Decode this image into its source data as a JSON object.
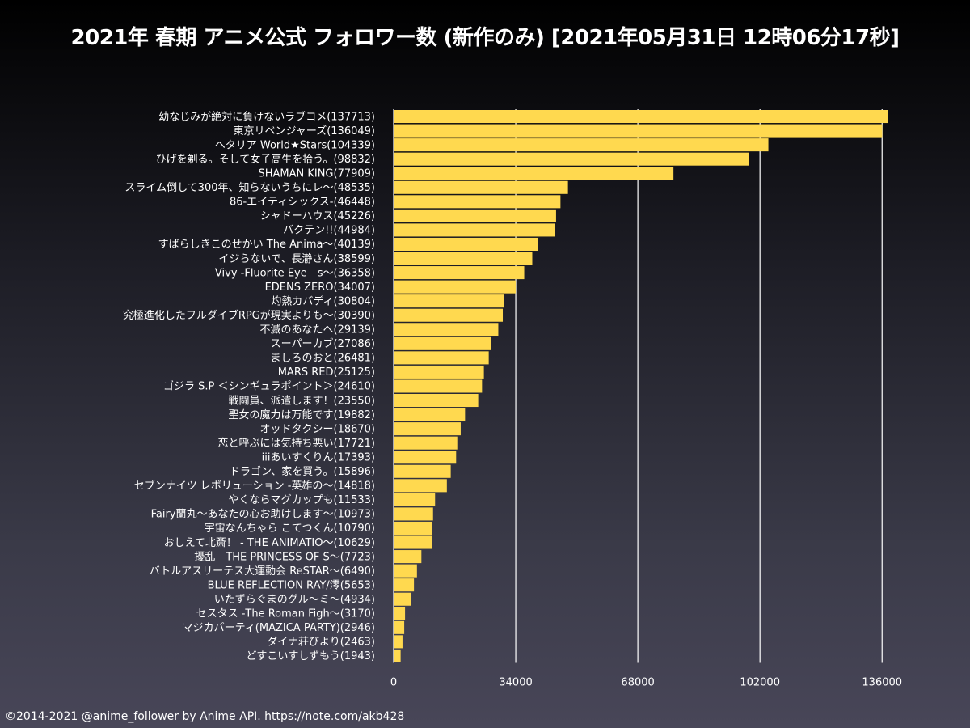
{
  "title": "2021年 春期 アニメ公式 フォロワー数 (新作のみ) [2021年05月31日 12時06分17秒]",
  "footer": "©2014-2021 @anime_follower by Anime API. https://note.com/akb428",
  "colors": {
    "bar": "#ffd94f",
    "grid": "#ffffff",
    "text": "#ffffff"
  },
  "chart_data": {
    "type": "bar",
    "orientation": "horizontal",
    "title": "2021年 春期 アニメ公式 フォロワー数 (新作のみ) [2021年05月31日 12時06分17秒]",
    "xlabel": "",
    "ylabel": "",
    "xlim": [
      0,
      140000
    ],
    "xticks": [
      0,
      34000,
      68000,
      102000,
      136000
    ],
    "xtick_labels": [
      "0",
      "34000",
      "68000",
      "102000",
      "136000"
    ],
    "grid": "vertical",
    "categories": [
      "幼なじみが絶対に負けないラブコメ(137713)",
      "東京リベンジャーズ(136049)",
      "ヘタリア World★Stars(104339)",
      "ひげを剃る。そして女子高生を拾う。(98832)",
      "SHAMAN KING(77909)",
      "スライム倒して300年、知らないうちにレ〜(48535)",
      "86-エイティシックス-(46448)",
      "シャドーハウス(45226)",
      "バクテン!!(44984)",
      "すばらしきこのせかい The Anima〜(40139)",
      "イジらないで、長瀞さん(38599)",
      "Vivy -Fluorite Eye　s〜(36358)",
      "EDENS ZERO(34007)",
      "灼熱カバディ(30804)",
      "究極進化したフルダイブRPGが現実よりも〜(30390)",
      "不滅のあなたへ(29139)",
      "スーパーカブ(27086)",
      "ましろのおと(26481)",
      "MARS RED(25125)",
      "ゴジラ S.P ＜シンギュラポイント＞(24610)",
      "戦闘員、派遣します！(23550)",
      "聖女の魔力は万能です(19882)",
      "オッドタクシー(18670)",
      "恋と呼ぶには気持ち悪い(17721)",
      "iiiあいすくりん(17393)",
      "ドラゴン、家を買う。(15896)",
      "セブンナイツ レボリューション -英雄の〜(14818)",
      "やくならマグカップも(11533)",
      "Fairy蘭丸〜あなたの心お助けします〜(10973)",
      "宇宙なんちゃら こてつくん(10790)",
      "おしえて北斎！ - THE ANIMATIO〜(10629)",
      "擾乱　THE PRINCESS OF S〜(7723)",
      "バトルアスリーテス大運動会 ReSTAR〜(6490)",
      "BLUE REFLECTION RAY/澪(5653)",
      "いたずらぐまのグル〜ミ〜(4934)",
      "セスタス -The Roman Figh〜(3170)",
      "マジカパーティ(MAZICA PARTY)(2946)",
      "ダイナ荘びより(2463)",
      "どすこいすしずもう(1943)"
    ],
    "values": [
      137713,
      136049,
      104339,
      98832,
      77909,
      48535,
      46448,
      45226,
      44984,
      40139,
      38599,
      36358,
      34007,
      30804,
      30390,
      29139,
      27086,
      26481,
      25125,
      24610,
      23550,
      19882,
      18670,
      17721,
      17393,
      15896,
      14818,
      11533,
      10973,
      10790,
      10629,
      7723,
      6490,
      5653,
      4934,
      3170,
      2946,
      2463,
      1943
    ]
  }
}
